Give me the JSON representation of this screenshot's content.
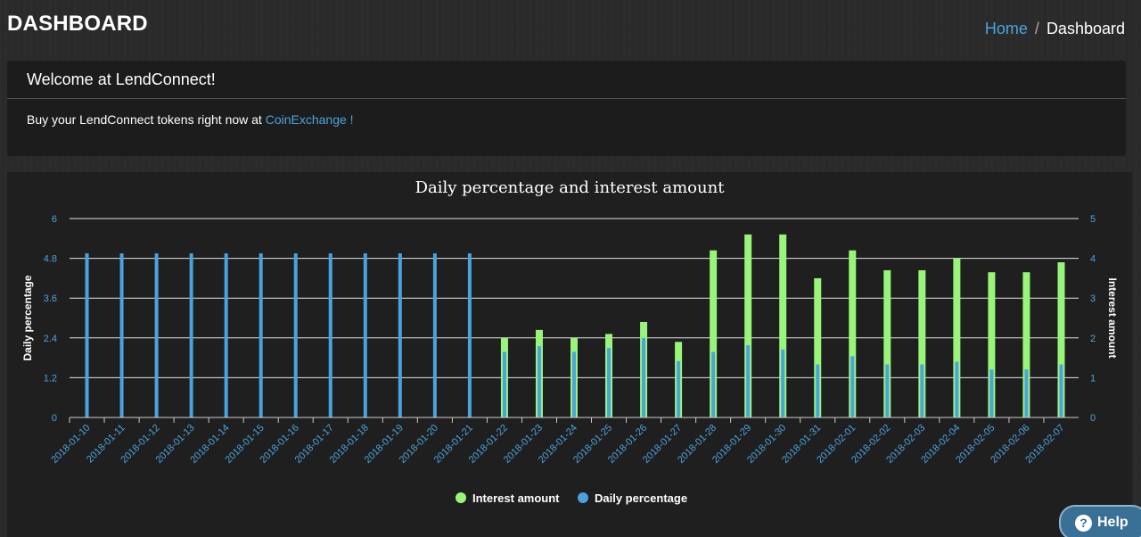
{
  "header": {
    "title": "DASHBOARD",
    "breadcrumb": {
      "home": "Home",
      "separator": "/",
      "current": "Dashboard"
    }
  },
  "welcome": {
    "title": "Welcome at LendConnect!",
    "text": "Buy your LendConnect tokens right now at ",
    "link_text": "CoinExchange !"
  },
  "help": {
    "label": "Help",
    "icon": "question-circle-icon"
  },
  "colors": {
    "accent": "#4aa3df",
    "interest": "#99f57a",
    "percentage": "#4aa3df"
  },
  "chart_data": {
    "type": "bar",
    "title": "Daily percentage and interest amount",
    "ylabel": "Daily percentage",
    "y2label": "Interest amount",
    "ylim": [
      0,
      6
    ],
    "y2lim": [
      0,
      5
    ],
    "yticks": [
      "0",
      "1.2",
      "2.4",
      "3.6",
      "4.8",
      "6"
    ],
    "y2ticks": [
      "0",
      "1",
      "2",
      "3",
      "4",
      "5"
    ],
    "grid": true,
    "legend_position": "bottom",
    "categories": [
      "2018-01-10",
      "2018-01-11",
      "2018-01-12",
      "2018-01-13",
      "2018-01-14",
      "2018-01-15",
      "2018-01-16",
      "2018-01-17",
      "2018-01-18",
      "2018-01-19",
      "2018-01-20",
      "2018-01-21",
      "2018-01-22",
      "2018-01-23",
      "2018-01-24",
      "2018-01-25",
      "2018-01-26",
      "2018-01-27",
      "2018-01-28",
      "2018-01-29",
      "2018-01-30",
      "2018-01-31",
      "2018-02-01",
      "2018-02-02",
      "2018-02-03",
      "2018-02-04",
      "2018-02-05",
      "2018-02-06",
      "2018-02-07"
    ],
    "series": [
      {
        "name": "Interest amount",
        "axis": "right",
        "color": "#99f57a",
        "values": [
          0,
          0,
          0,
          0,
          0,
          0,
          0,
          0,
          0,
          0,
          0,
          0,
          2.0,
          2.2,
          2.0,
          2.1,
          2.4,
          1.9,
          4.2,
          4.6,
          4.6,
          3.5,
          4.2,
          3.7,
          3.7,
          4.0,
          3.65,
          3.65,
          3.9
        ]
      },
      {
        "name": "Daily percentage",
        "axis": "left",
        "color": "#4aa3df",
        "values": [
          4.95,
          4.95,
          4.95,
          4.95,
          4.95,
          4.95,
          4.95,
          4.95,
          4.95,
          4.95,
          4.95,
          4.95,
          1.98,
          2.15,
          1.98,
          2.1,
          2.4,
          1.7,
          1.98,
          2.18,
          2.05,
          1.6,
          1.85,
          1.6,
          1.6,
          1.68,
          1.45,
          1.45,
          1.6
        ]
      }
    ]
  }
}
